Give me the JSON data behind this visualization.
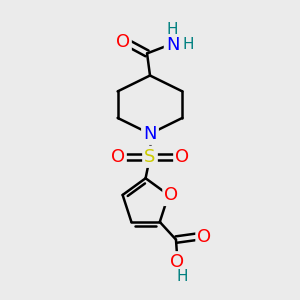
{
  "background_color": "#ebebeb",
  "bond_color": "#000000",
  "bond_width": 1.8,
  "atom_colors": {
    "O": "#ff0000",
    "N": "#0000ff",
    "S": "#cccc00",
    "H_amide": "#008080",
    "C": "#000000"
  },
  "font_size_atoms": 13,
  "font_size_H": 11,
  "canvas_xlim": [
    0,
    10
  ],
  "canvas_ylim": [
    0,
    10
  ]
}
